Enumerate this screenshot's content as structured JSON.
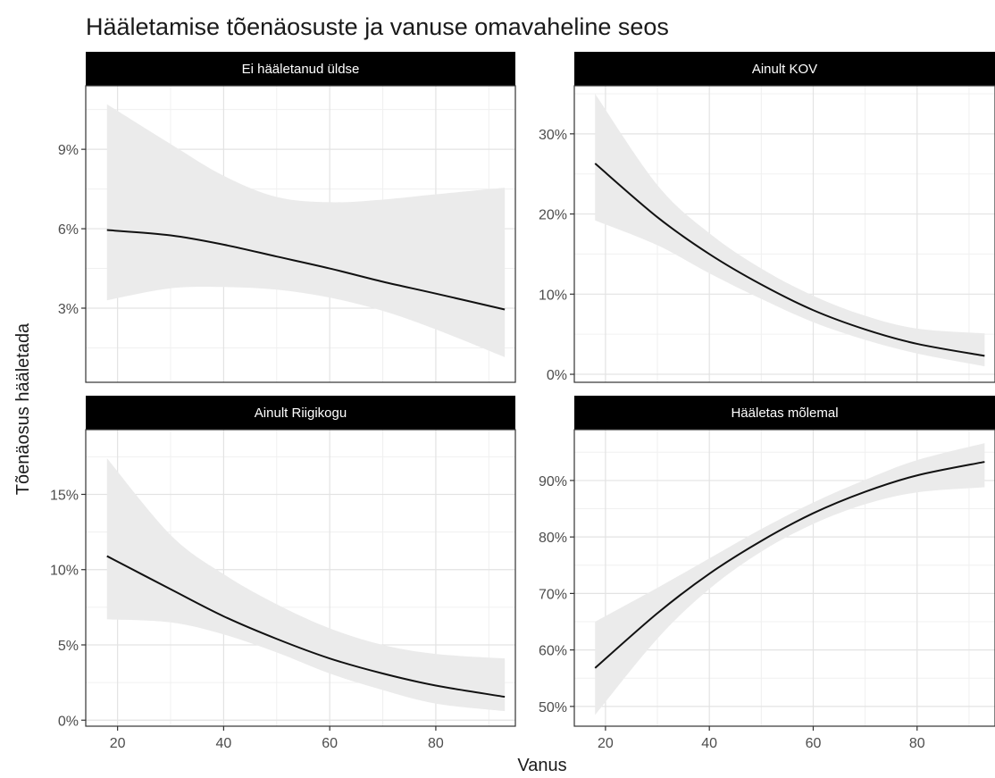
{
  "chart_data": {
    "type": "line",
    "title": "Hääletamise tõenäosuste ja vanuse omavaheline seos",
    "xlabel": "Vanus",
    "ylabel": "Tõenäosus hääletada",
    "grid": true,
    "facets": [
      {
        "name": "Ei hääletanud üldse",
        "xlim": [
          14,
          95
        ],
        "x_ticks": [
          20,
          40,
          60,
          80
        ],
        "x_tick_labels": [
          "20",
          "40",
          "60",
          "80"
        ],
        "ylim": [
          0.2,
          11.4
        ],
        "y_ticks": [
          3,
          6,
          9
        ],
        "y_tick_labels": [
          "3%",
          "6%",
          "9%"
        ],
        "x": [
          18,
          30,
          40,
          50,
          60,
          70,
          80,
          93
        ],
        "y": [
          5.95,
          5.75,
          5.4,
          4.95,
          4.5,
          4.0,
          3.55,
          2.95
        ],
        "y_lower": [
          3.3,
          3.75,
          3.8,
          3.7,
          3.4,
          2.9,
          2.2,
          1.15
        ],
        "y_upper": [
          10.7,
          9.2,
          8.0,
          7.2,
          7.0,
          7.1,
          7.3,
          7.55
        ]
      },
      {
        "name": "Ainult KOV",
        "xlim": [
          14,
          95
        ],
        "x_ticks": [
          20,
          40,
          60,
          80
        ],
        "x_tick_labels": [
          "20",
          "40",
          "60",
          "80"
        ],
        "ylim": [
          -1,
          36
        ],
        "y_ticks": [
          0,
          10,
          20,
          30
        ],
        "y_tick_labels": [
          "0%",
          "10%",
          "20%",
          "30%"
        ],
        "x": [
          18,
          30,
          40,
          50,
          60,
          70,
          80,
          93
        ],
        "y": [
          26.3,
          19.6,
          15.0,
          11.2,
          8.0,
          5.6,
          3.8,
          2.3
        ],
        "y_lower": [
          19.2,
          16.1,
          12.6,
          9.4,
          6.5,
          4.3,
          2.6,
          1.0
        ],
        "y_upper": [
          35.0,
          23.6,
          17.6,
          13.2,
          9.8,
          7.3,
          5.7,
          5.1
        ]
      },
      {
        "name": "Ainult Riigikogu",
        "xlim": [
          14,
          95
        ],
        "x_ticks": [
          20,
          40,
          60,
          80
        ],
        "x_tick_labels": [
          "20",
          "40",
          "60",
          "80"
        ],
        "ylim": [
          -0.4,
          19.3
        ],
        "y_ticks": [
          0,
          5,
          10,
          15
        ],
        "y_tick_labels": [
          "0%",
          "5%",
          "10%",
          "15%"
        ],
        "x": [
          18,
          30,
          40,
          50,
          60,
          70,
          80,
          93
        ],
        "y": [
          10.9,
          8.7,
          6.9,
          5.4,
          4.1,
          3.1,
          2.3,
          1.55
        ],
        "y_lower": [
          6.7,
          6.5,
          5.7,
          4.5,
          3.1,
          2.0,
          1.1,
          0.6
        ],
        "y_upper": [
          17.4,
          12.3,
          9.7,
          7.7,
          6.1,
          5.0,
          4.4,
          4.1
        ]
      },
      {
        "name": "Hääletas mõlemal",
        "xlim": [
          14,
          95
        ],
        "x_ticks": [
          20,
          40,
          60,
          80
        ],
        "x_tick_labels": [
          "20",
          "40",
          "60",
          "80"
        ],
        "ylim": [
          46.5,
          99
        ],
        "y_ticks": [
          50,
          60,
          70,
          80,
          90
        ],
        "y_tick_labels": [
          "50%",
          "60%",
          "70%",
          "80%",
          "90%"
        ],
        "x": [
          18,
          30,
          40,
          50,
          60,
          70,
          80,
          93
        ],
        "y": [
          56.8,
          66.5,
          73.5,
          79.3,
          84.2,
          88.0,
          90.9,
          93.3
        ],
        "y_lower": [
          48.5,
          62.0,
          70.8,
          77.4,
          82.3,
          85.8,
          87.9,
          88.8
        ],
        "y_upper": [
          65.0,
          71.0,
          76.2,
          81.4,
          86.1,
          90.1,
          93.6,
          96.6
        ]
      }
    ]
  }
}
